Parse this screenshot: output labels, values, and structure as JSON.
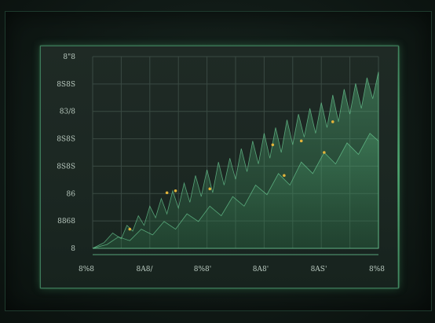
{
  "chart_data": {
    "type": "area",
    "title": "",
    "xlabel": "",
    "ylabel": "",
    "y_ticks": [
      "8",
      "8868",
      "86",
      "8S8S",
      "8S8S",
      "83/8",
      "8S8S",
      "8\"8"
    ],
    "x_ticks": [
      "8%8",
      "8A8/",
      "8%8'",
      "8A8'",
      "8AS'",
      "8%8"
    ],
    "ylim": [
      0,
      100
    ],
    "xlim": [
      0,
      100
    ],
    "grid": true,
    "colors": {
      "fill": "#3f9a62",
      "stroke": "#6fd39a",
      "marker": "#e2b33a",
      "grid": "#3a4a43",
      "frame": "#3d7a5a"
    },
    "series": [
      {
        "values": [
          [
            0,
            0
          ],
          [
            4,
            3
          ],
          [
            7,
            8
          ],
          [
            10,
            5
          ],
          [
            12,
            12
          ],
          [
            14,
            9
          ],
          [
            16,
            17
          ],
          [
            18,
            12
          ],
          [
            20,
            22
          ],
          [
            22,
            16
          ],
          [
            24,
            26
          ],
          [
            26,
            18
          ],
          [
            28,
            30
          ],
          [
            30,
            21
          ],
          [
            32,
            34
          ],
          [
            34,
            24
          ],
          [
            36,
            38
          ],
          [
            38,
            27
          ],
          [
            40,
            41
          ],
          [
            42,
            29
          ],
          [
            44,
            45
          ],
          [
            46,
            33
          ],
          [
            48,
            47
          ],
          [
            50,
            36
          ],
          [
            52,
            52
          ],
          [
            54,
            40
          ],
          [
            56,
            56
          ],
          [
            58,
            44
          ],
          [
            60,
            60
          ],
          [
            62,
            47
          ],
          [
            64,
            63
          ],
          [
            66,
            50
          ],
          [
            68,
            67
          ],
          [
            70,
            54
          ],
          [
            72,
            70
          ],
          [
            74,
            58
          ],
          [
            76,
            73
          ],
          [
            78,
            60
          ],
          [
            80,
            76
          ],
          [
            82,
            63
          ],
          [
            84,
            80
          ],
          [
            86,
            66
          ],
          [
            88,
            83
          ],
          [
            90,
            70
          ],
          [
            92,
            86
          ],
          [
            94,
            73
          ],
          [
            96,
            89
          ],
          [
            98,
            78
          ],
          [
            100,
            92
          ]
        ]
      },
      {
        "values": [
          [
            0,
            0
          ],
          [
            5,
            2
          ],
          [
            9,
            6
          ],
          [
            13,
            4
          ],
          [
            17,
            10
          ],
          [
            21,
            7
          ],
          [
            25,
            14
          ],
          [
            29,
            10
          ],
          [
            33,
            18
          ],
          [
            37,
            14
          ],
          [
            41,
            22
          ],
          [
            45,
            17
          ],
          [
            49,
            27
          ],
          [
            53,
            22
          ],
          [
            57,
            33
          ],
          [
            61,
            28
          ],
          [
            65,
            39
          ],
          [
            69,
            33
          ],
          [
            73,
            45
          ],
          [
            77,
            39
          ],
          [
            81,
            50
          ],
          [
            85,
            44
          ],
          [
            89,
            55
          ],
          [
            93,
            49
          ],
          [
            97,
            60
          ],
          [
            100,
            56
          ]
        ]
      }
    ],
    "markers": [
      {
        "x": 13,
        "y": 10
      },
      {
        "x": 26,
        "y": 29
      },
      {
        "x": 29,
        "y": 30
      },
      {
        "x": 41,
        "y": 31
      },
      {
        "x": 63,
        "y": 54
      },
      {
        "x": 67,
        "y": 38
      },
      {
        "x": 73,
        "y": 56
      },
      {
        "x": 81,
        "y": 50
      },
      {
        "x": 84,
        "y": 66
      }
    ]
  }
}
